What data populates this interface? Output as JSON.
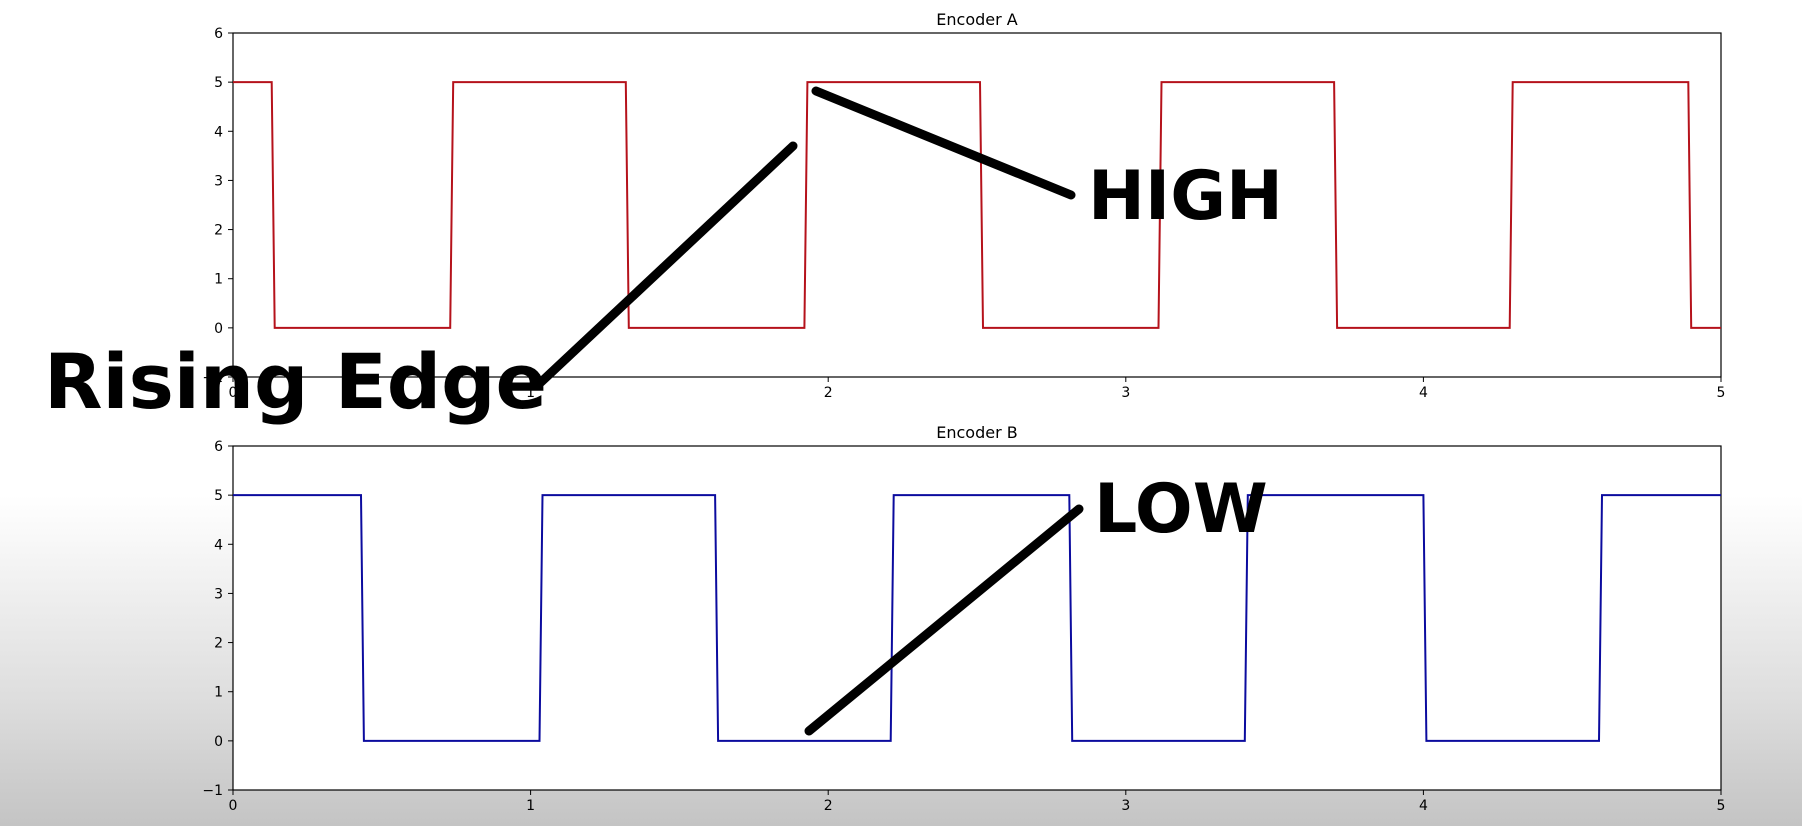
{
  "chart_data": [
    {
      "type": "line",
      "title": "Encoder A",
      "xlim": [
        0,
        5
      ],
      "ylim": [
        -1,
        6
      ],
      "xticks": [
        "0",
        "1",
        "2",
        "3",
        "4",
        "5"
      ],
      "yticks": [
        "−1",
        "0",
        "1",
        "2",
        "3",
        "4",
        "5",
        "6"
      ],
      "grid": false,
      "series": [
        {
          "color": "#b5121b",
          "x": [
            0,
            0.13,
            0.14,
            0.73,
            0.74,
            1.32,
            1.33,
            1.92,
            1.93,
            2.51,
            2.52,
            3.11,
            3.12,
            3.7,
            3.71,
            4.29,
            4.3,
            4.89,
            4.9,
            5.0
          ],
          "y": [
            5,
            5,
            0,
            0,
            5,
            5,
            0,
            0,
            5,
            5,
            0,
            0,
            5,
            5,
            0,
            0,
            5,
            5,
            0,
            0
          ]
        }
      ]
    },
    {
      "type": "line",
      "title": "Encoder B",
      "xlim": [
        0,
        5
      ],
      "ylim": [
        -1,
        6
      ],
      "xticks": [
        "0",
        "1",
        "2",
        "3",
        "4",
        "5"
      ],
      "yticks": [
        "−1",
        "0",
        "1",
        "2",
        "3",
        "4",
        "5",
        "6"
      ],
      "grid": false,
      "series": [
        {
          "color": "#0b0b9e",
          "x": [
            0,
            0.43,
            0.44,
            1.03,
            1.04,
            1.62,
            1.63,
            2.21,
            2.22,
            2.81,
            2.82,
            3.4,
            3.41,
            4.0,
            4.01,
            4.59,
            4.6,
            5.0
          ],
          "y": [
            5,
            5,
            0,
            0,
            5,
            5,
            0,
            0,
            5,
            5,
            0,
            0,
            5,
            5,
            0,
            0,
            5,
            5
          ]
        }
      ]
    }
  ],
  "annotations": {
    "rising_edge": "Rising Edge",
    "high": "HIGH",
    "low": "LOW"
  }
}
